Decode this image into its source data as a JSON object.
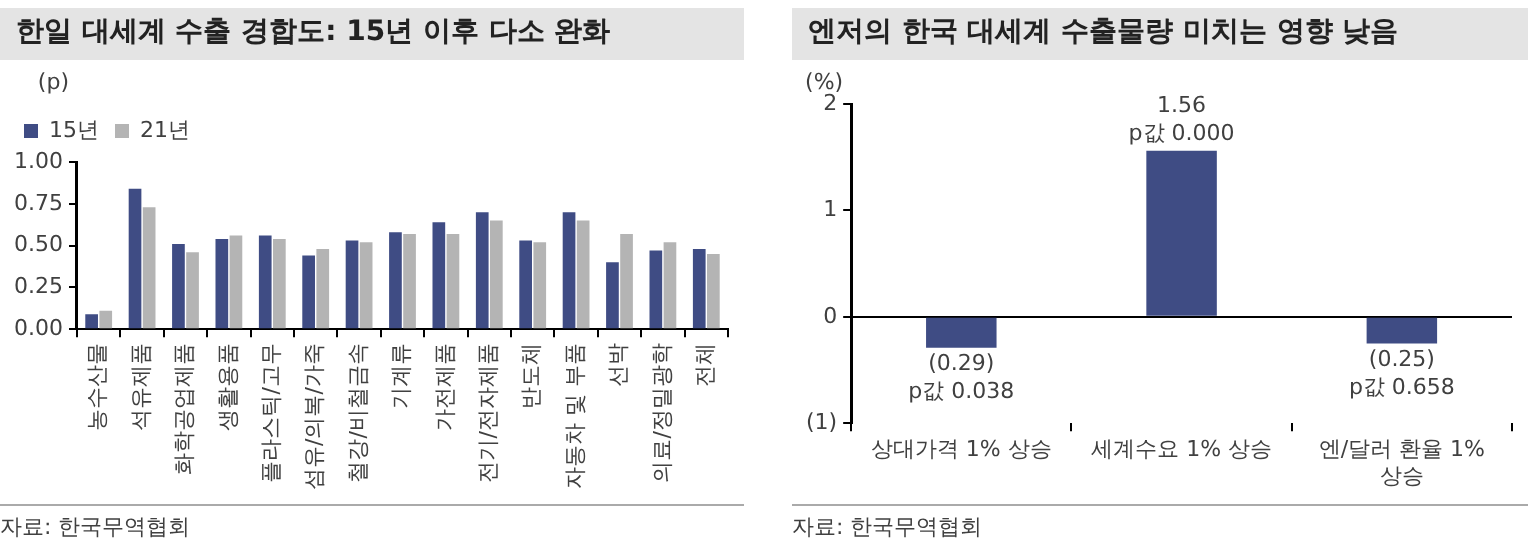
{
  "chart_data": [
    {
      "type": "bar",
      "title": "한일 대세계 수출 경합도: 15년 이후 다소 완화",
      "ylabel": "(p)",
      "legend": "top left",
      "categories": [
        "농수산물",
        "석유제품",
        "화학공업제품",
        "생활용품",
        "플라스틱/고무",
        "섬유/의복/가죽",
        "철강/비철금속",
        "기계류",
        "가전제품",
        "전기/전자제품",
        "반도체",
        "자동차 및 부품",
        "선박",
        "의료/정밀광학",
        "전체"
      ],
      "series": [
        {
          "name": "15년",
          "color": "#3f4c84",
          "values": [
            0.09,
            0.84,
            0.51,
            0.54,
            0.56,
            0.44,
            0.53,
            0.58,
            0.64,
            0.7,
            0.53,
            0.7,
            0.4,
            0.47,
            0.48
          ]
        },
        {
          "name": "21년",
          "color": "#b4b4b4",
          "values": [
            0.11,
            0.73,
            0.46,
            0.56,
            0.54,
            0.48,
            0.52,
            0.57,
            0.57,
            0.65,
            0.52,
            0.65,
            0.57,
            0.52,
            0.45
          ]
        }
      ],
      "ylim": [
        0,
        1
      ],
      "yticks": [
        {
          "value": 0,
          "label": "0.00"
        },
        {
          "value": 0.25,
          "label": "0.25"
        },
        {
          "value": 0.5,
          "label": "0.50"
        },
        {
          "value": 0.75,
          "label": "0.75"
        },
        {
          "value": 1,
          "label": "1.00"
        }
      ],
      "annotations": [
        "자료: 한국무역협회"
      ]
    },
    {
      "type": "bar",
      "title": "엔저의 한국 대세계 수출물량 미치는 영향 낮음",
      "ylabel": "(%)",
      "categories": [
        "상대가격 1% 상승",
        "세계수요 1% 상승",
        "엔/달러 환율 1% 상승"
      ],
      "values": [
        -0.29,
        1.56,
        -0.25
      ],
      "color": "#3f4c84",
      "value_labels": [
        "(0.29)",
        "1.56",
        "(0.25)"
      ],
      "ylim": [
        -1,
        2
      ],
      "yticks": [
        {
          "value": -1,
          "label": "(1)"
        },
        0,
        1,
        2
      ],
      "annotations": [
        {
          "text": "p값 0.038",
          "x": "상대가격 1% 상승",
          "y": -0.29
        },
        {
          "text": "p값 0.000",
          "x": "세계수요 1% 상승",
          "y": 1.56
        },
        {
          "text": "p값 0.658",
          "x": "엔/달러 환율 1% 상승",
          "y": -0.25
        },
        "자료: 한국무역협회"
      ]
    }
  ]
}
